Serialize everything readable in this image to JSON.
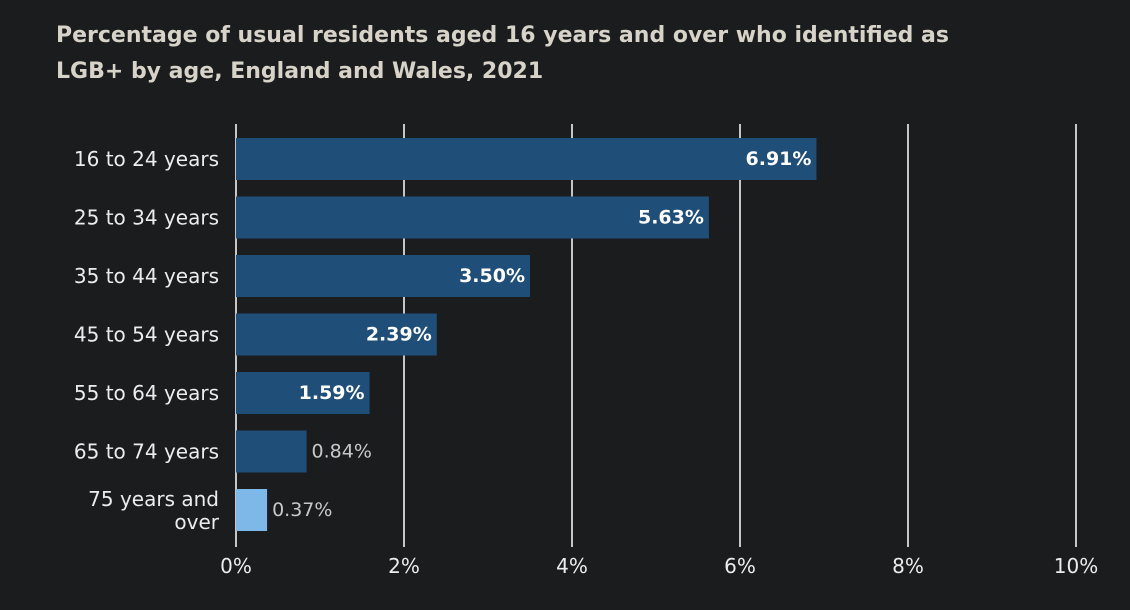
{
  "chart_data": {
    "type": "bar",
    "orientation": "horizontal",
    "title": "Percentage of usual residents aged 16 years and over who identified as LGB+ by age, England and Wales, 2021",
    "categories": [
      "16 to 24 years",
      "25 to 34 years",
      "35 to 44 years",
      "45 to 54 years",
      "55 to 64 years",
      "65 to 74 years",
      "75 years and over"
    ],
    "values": [
      6.91,
      5.63,
      3.5,
      2.39,
      1.59,
      0.84,
      0.37
    ],
    "data_labels": [
      "6.91%",
      "5.63%",
      "3.50%",
      "2.39%",
      "1.59%",
      "0.84%",
      "0.37%"
    ],
    "xlim": [
      0,
      10
    ],
    "x_ticks": [
      0,
      2,
      4,
      6,
      8,
      10
    ],
    "x_tick_labels": [
      "0%",
      "2%",
      "4%",
      "6%",
      "8%",
      "10%"
    ],
    "grid": "vertical",
    "bar_colors": [
      "#1f4e79",
      "#1f4e79",
      "#1f4e79",
      "#1f4e79",
      "#1f4e79",
      "#1f4e79",
      "#7eb8e8"
    ],
    "background_color": "#1b1c1e",
    "title_color": "#d8d3c8",
    "text_color": "#ececec",
    "inside_label_color": "#ffffff",
    "outside_label_color": "#c8c8c8",
    "grid_color": "#ffffff"
  }
}
